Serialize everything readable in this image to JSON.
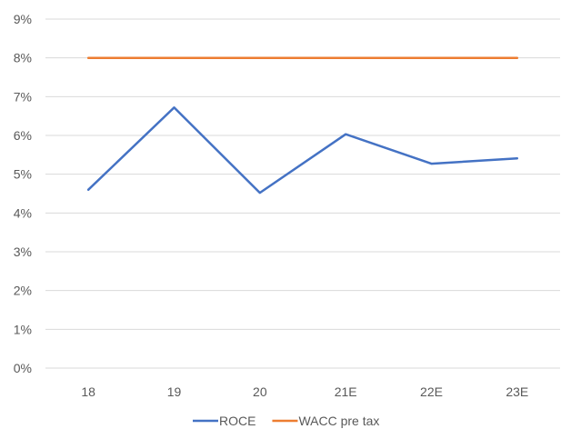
{
  "chart_data": {
    "type": "line",
    "title": "",
    "xlabel": "",
    "ylabel": "",
    "categories": [
      "18",
      "19",
      "20",
      "21E",
      "22E",
      "23E"
    ],
    "series": [
      {
        "name": "ROCE",
        "values": [
          0.046,
          0.0672,
          0.0452,
          0.0603,
          0.0527,
          0.0541
        ],
        "color": "#4472C4"
      },
      {
        "name": "WACC pre tax",
        "values": [
          0.08,
          0.08,
          0.08,
          0.08,
          0.08,
          0.08
        ],
        "color": "#ED7D31"
      }
    ],
    "ylim": [
      0,
      0.09
    ],
    "yticks": [
      "0%",
      "1%",
      "2%",
      "3%",
      "4%",
      "5%",
      "6%",
      "7%",
      "8%",
      "9%"
    ],
    "grid": true,
    "legend_position": "bottom",
    "colors": {
      "gridline": "#D9D9D9",
      "text": "#595959"
    }
  }
}
